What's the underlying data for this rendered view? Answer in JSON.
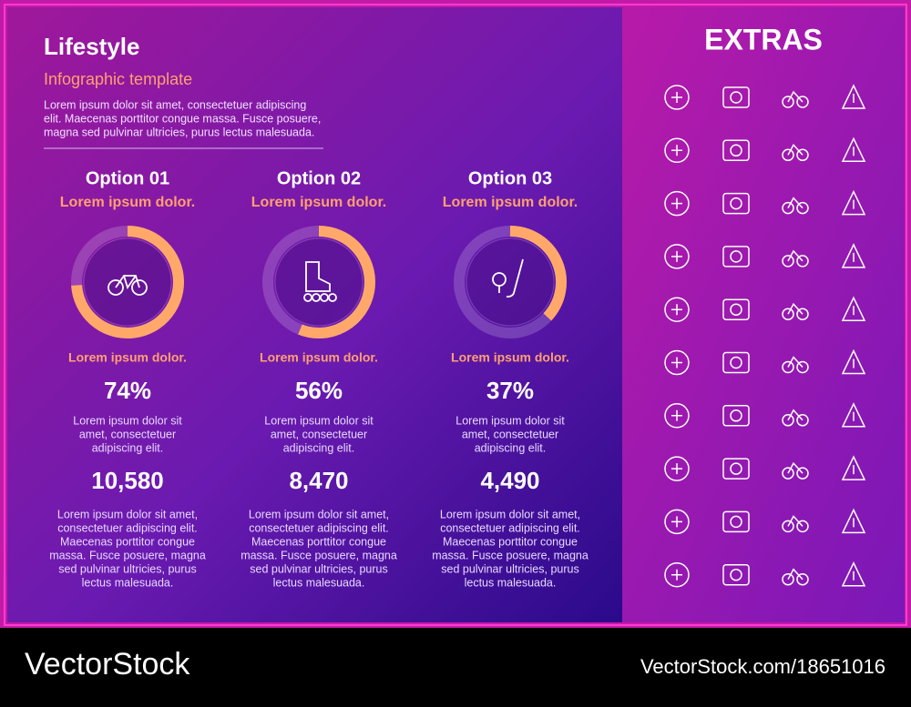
{
  "header": {
    "title": "Lifestyle",
    "subtitle": "Infographic template",
    "intro": [
      "Lorem ipsum dolor sit amet, consectetuer adipiscing",
      "elit. Maecenas porttitor congue massa. Fusce posuere,",
      "magna sed pulvinar ultricies, purus lectus malesuada."
    ]
  },
  "options": [
    {
      "title": "Option 01",
      "subtitle": "Lorem ipsum dolor.",
      "caption": "Lorem ipsum dolor.",
      "percent": {
        "value": 74,
        "label": "74%"
      },
      "desc": [
        "Lorem ipsum dolor sit",
        "amet, consectetuer",
        "adipiscing elit."
      ],
      "count": "10,580",
      "text": [
        "Lorem ipsum dolor sit amet,",
        "consectetuer adipiscing elit.",
        "Maecenas porttitor congue",
        "massa. Fusce posuere, magna",
        "sed pulvinar ultricies, purus",
        "lectus malesuada."
      ]
    },
    {
      "title": "Option 02",
      "subtitle": "Lorem ipsum dolor.",
      "caption": "Lorem ipsum dolor.",
      "percent": {
        "value": 56,
        "label": "56%"
      },
      "desc": [
        "Lorem ipsum dolor sit",
        "amet, consectetuer",
        "adipiscing elit."
      ],
      "count": "8,470",
      "text": [
        "Lorem ipsum dolor sit amet,",
        "consectetuer adipiscing elit.",
        "Maecenas porttitor congue",
        "massa. Fusce posuere, magna",
        "sed pulvinar ultricies, purus",
        "lectus malesuada."
      ]
    },
    {
      "title": "Option 03",
      "subtitle": "Lorem ipsum dolor.",
      "caption": "Lorem ipsum dolor.",
      "percent": {
        "value": 37,
        "label": "37%"
      },
      "desc": [
        "Lorem ipsum dolor sit",
        "amet, consectetuer",
        "adipiscing elit."
      ],
      "count": "4,490",
      "text": [
        "Lorem ipsum dolor sit amet,",
        "consectetuer adipiscing elit.",
        "Maecenas porttitor congue",
        "massa. Fusce posuere, magna",
        "sed pulvinar ultricies, purus",
        "lectus malesuada."
      ]
    }
  ],
  "extras": {
    "title": "EXTRAS"
  },
  "footer": {
    "brand": "VectorStock",
    "id": "VectorStock.com/18651016"
  }
}
